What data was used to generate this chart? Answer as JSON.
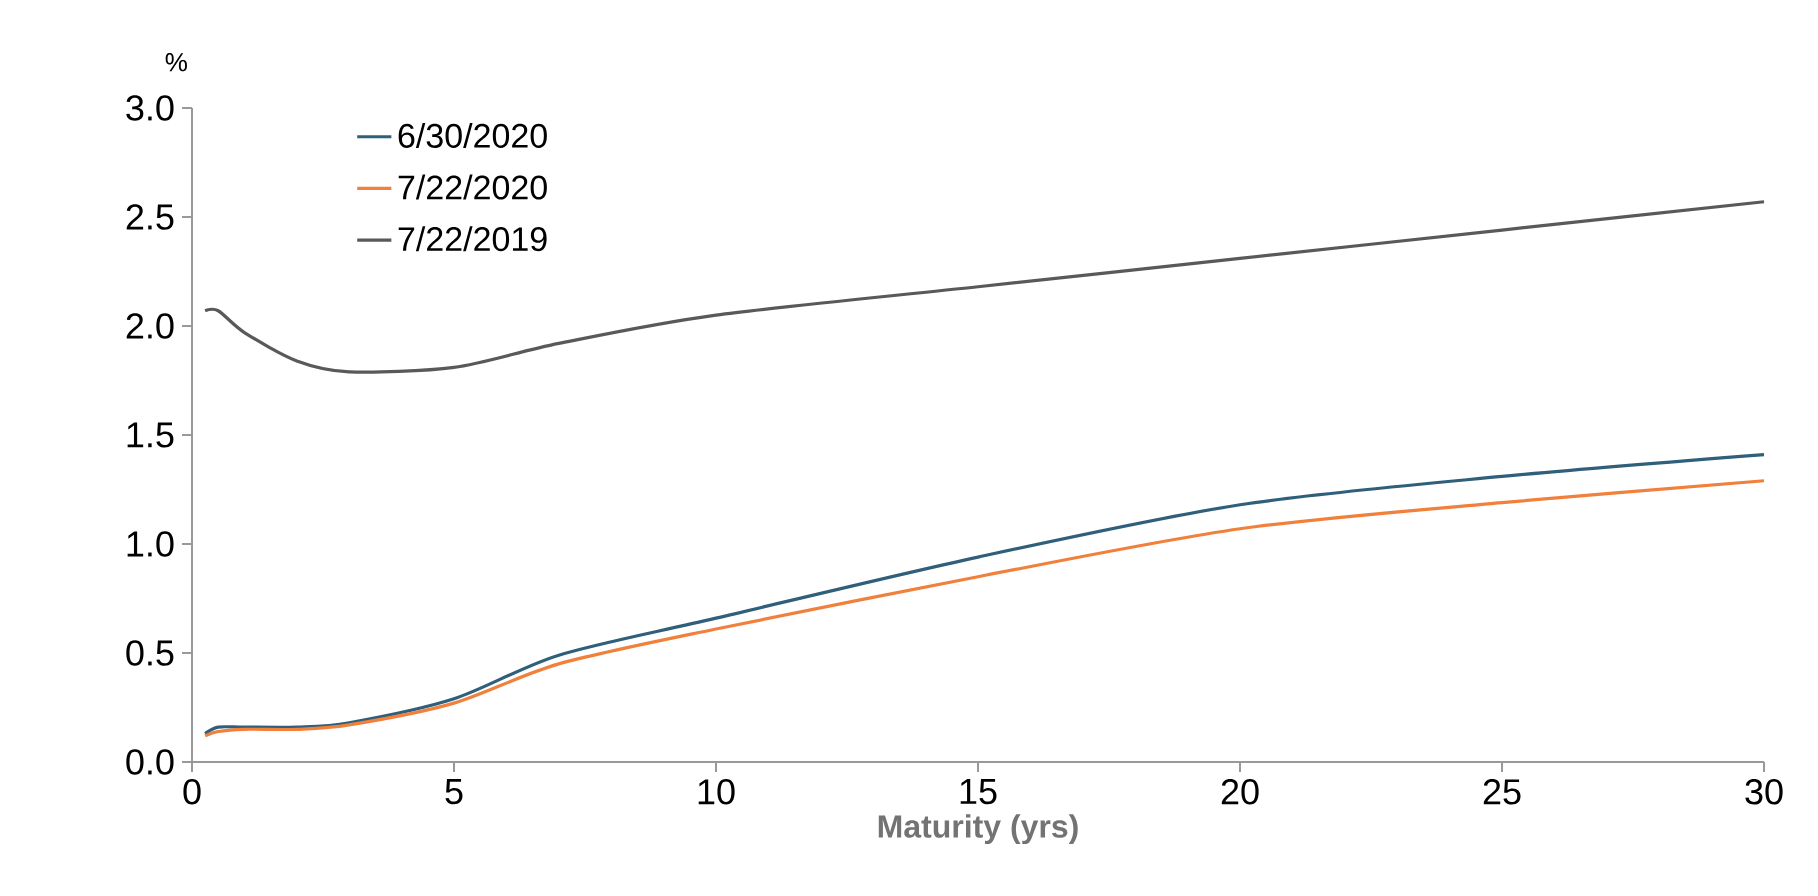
{
  "chart_data": {
    "type": "line",
    "xlabel": "Maturity (yrs)",
    "ylabel": "%",
    "xlim": [
      0,
      30
    ],
    "xticks": [
      0,
      5,
      10,
      15,
      20,
      25,
      30
    ],
    "ylim": [
      0,
      3.0
    ],
    "yticks": [
      {
        "value": 0,
        "label": "0.0"
      },
      {
        "value": 0.5,
        "label": "0.5"
      },
      {
        "value": 1,
        "label": "1.0"
      },
      {
        "value": 1.5,
        "label": "1.5"
      },
      {
        "value": 2,
        "label": "2.0"
      },
      {
        "value": 2.5,
        "label": "2.5"
      },
      {
        "value": 3,
        "label": "3.0"
      }
    ],
    "x": [
      0.25,
      0.5,
      1,
      2,
      3,
      5,
      7,
      10,
      15,
      20,
      25,
      30
    ],
    "series": [
      {
        "name": "6/30/2020",
        "color": "#2f5f7a",
        "values": [
          0.13,
          0.16,
          0.16,
          0.16,
          0.18,
          0.29,
          0.49,
          0.66,
          0.94,
          1.18,
          1.31,
          1.41
        ]
      },
      {
        "name": "7/22/2020",
        "color": "#f0803c",
        "values": [
          0.12,
          0.14,
          0.15,
          0.15,
          0.17,
          0.27,
          0.45,
          0.61,
          0.85,
          1.07,
          1.19,
          1.29
        ]
      },
      {
        "name": "7/22/2019",
        "color": "#595959",
        "values": [
          2.07,
          2.07,
          1.97,
          1.84,
          1.79,
          1.81,
          1.92,
          2.05,
          2.18,
          2.31,
          2.44,
          2.57
        ]
      }
    ],
    "legend": "top left",
    "grid": false,
    "marker": "none",
    "line_style": "solid"
  }
}
